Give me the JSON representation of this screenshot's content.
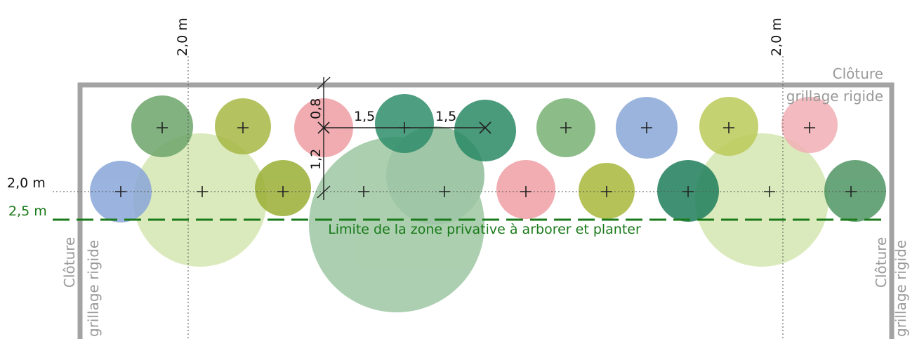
{
  "dimensions": {
    "top_left": "2,0 m",
    "top_right": "2,0 m",
    "row_left": "2,0 m",
    "limit_left": "2,5 m",
    "spacing_vertical_top": "0,8",
    "spacing_h1": "1,5",
    "spacing_h2": "1,5",
    "spacing_vertical_bottom": "1,2"
  },
  "fences": {
    "top": [
      "Clôture",
      "grillage rigide"
    ],
    "left": [
      "Clôture",
      "grillage rigide"
    ],
    "right": [
      "Clôture",
      "grillage rigide"
    ]
  },
  "limit_label": "Limite de la zone privative à arborer et planter"
}
